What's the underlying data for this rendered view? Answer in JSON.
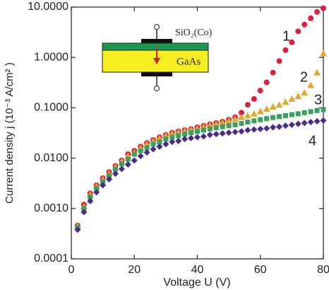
{
  "chart_data": {
    "type": "scatter",
    "xlabel": "Voltage  U  (V)",
    "ylabel": "Current density  j  (10⁻³ A/cm² )",
    "log_y": true,
    "xlim": [
      0,
      80
    ],
    "ylim": [
      0.0001,
      10
    ],
    "xticks": [
      0,
      20,
      40,
      60,
      80
    ],
    "yticks": [
      0.0001,
      {
        "value": 0.001,
        "label": "0.0010"
      },
      {
        "value": 0.01,
        "label": "0.0100"
      },
      {
        "value": 0.1,
        "label": "0.1000"
      },
      {
        "value": 1,
        "label": "1.0000"
      },
      {
        "value": 10,
        "label": "10.0000"
      }
    ],
    "x": [
      2,
      4,
      6,
      8,
      10,
      12,
      14,
      16,
      18,
      20,
      22,
      24,
      26,
      28,
      30,
      32,
      34,
      36,
      38,
      40,
      42,
      44,
      46,
      48,
      50,
      52,
      54,
      56,
      58,
      60,
      62,
      64,
      66,
      68,
      70,
      72,
      74,
      76,
      78,
      80
    ],
    "series": [
      {
        "name": "1",
        "color": "#e0203a",
        "marker": "circle",
        "values": [
          0.00046,
          0.0012,
          0.002,
          0.0029,
          0.004,
          0.0053,
          0.007,
          0.009,
          0.012,
          0.014,
          0.017,
          0.02,
          0.023,
          0.026,
          0.029,
          0.032,
          0.034,
          0.036,
          0.038,
          0.041,
          0.044,
          0.047,
          0.05,
          0.053,
          0.058,
          0.065,
          0.08,
          0.115,
          0.15,
          0.22,
          0.32,
          0.5,
          0.85,
          1.4,
          2.0,
          3.3,
          4.5,
          6,
          8,
          9.5
        ]
      },
      {
        "name": "2",
        "color": "#e0a830",
        "marker": "triangle",
        "values": [
          0.00045,
          0.0011,
          0.0019,
          0.0028,
          0.0038,
          0.005,
          0.0067,
          0.0086,
          0.011,
          0.013,
          0.016,
          0.019,
          0.022,
          0.025,
          0.028,
          0.031,
          0.033,
          0.035,
          0.037,
          0.039,
          0.042,
          0.045,
          0.048,
          0.051,
          0.055,
          0.06,
          0.065,
          0.07,
          0.076,
          0.085,
          0.095,
          0.105,
          0.115,
          0.13,
          0.15,
          0.17,
          0.2,
          0.28,
          0.5,
          1.2
        ]
      },
      {
        "name": "3",
        "color": "#3aa060",
        "marker": "square",
        "values": [
          0.00042,
          0.001,
          0.0017,
          0.0025,
          0.0034,
          0.0045,
          0.006,
          0.0077,
          0.0095,
          0.012,
          0.014,
          0.016,
          0.019,
          0.021,
          0.024,
          0.026,
          0.028,
          0.03,
          0.032,
          0.034,
          0.036,
          0.038,
          0.04,
          0.042,
          0.044,
          0.046,
          0.049,
          0.052,
          0.055,
          0.058,
          0.061,
          0.064,
          0.067,
          0.07,
          0.073,
          0.076,
          0.08,
          0.084,
          0.088,
          0.092
        ]
      },
      {
        "name": "4",
        "color": "#4a2a8a",
        "marker": "diamond",
        "values": [
          0.00038,
          0.00085,
          0.0014,
          0.0021,
          0.0029,
          0.0038,
          0.0049,
          0.0061,
          0.0075,
          0.009,
          0.011,
          0.013,
          0.015,
          0.017,
          0.019,
          0.021,
          0.022,
          0.024,
          0.025,
          0.026,
          0.027,
          0.029,
          0.03,
          0.031,
          0.032,
          0.033,
          0.034,
          0.036,
          0.037,
          0.038,
          0.039,
          0.041,
          0.042,
          0.044,
          0.046,
          0.048,
          0.05,
          0.052,
          0.054,
          0.056
        ]
      }
    ],
    "inset_labels": [
      "SiO₂(Co)",
      "GaAs"
    ]
  }
}
